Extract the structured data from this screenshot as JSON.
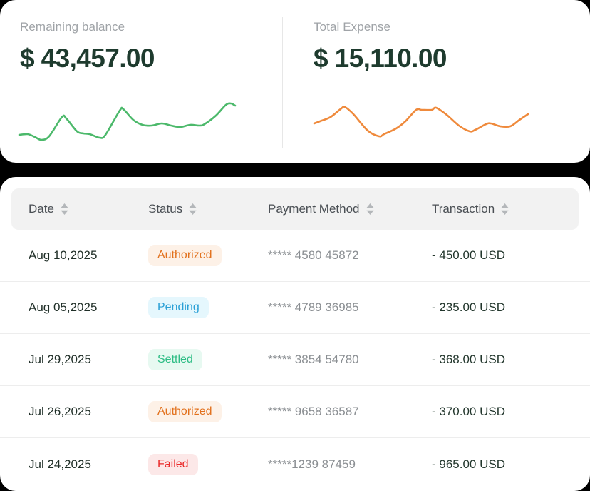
{
  "page": {
    "background_color": "#000000",
    "card_color": "#ffffff"
  },
  "summary": {
    "cards": [
      {
        "label": "Remaining balance",
        "value": "$ 43,457.00",
        "trend_color": "#4cb96b"
      },
      {
        "label": "Total Expense",
        "value": "$ 15,110.00",
        "trend_color": "#ef8a3c"
      }
    ]
  },
  "chart_data": [
    {
      "type": "line",
      "name": "remaining-balance-trend",
      "color": "#4cb96b",
      "legend": "none",
      "axes": "hidden",
      "points": [
        [
          2,
          53
        ],
        [
          14,
          52
        ],
        [
          24,
          56
        ],
        [
          33,
          60
        ],
        [
          44,
          55
        ],
        [
          62,
          28
        ],
        [
          68,
          30
        ],
        [
          83,
          48
        ],
        [
          92,
          51
        ],
        [
          101,
          52
        ],
        [
          115,
          57
        ],
        [
          123,
          53
        ],
        [
          143,
          19
        ],
        [
          148,
          17
        ],
        [
          162,
          32
        ],
        [
          175,
          39
        ],
        [
          188,
          40
        ],
        [
          202,
          37
        ],
        [
          215,
          40
        ],
        [
          228,
          42
        ],
        [
          242,
          39
        ],
        [
          255,
          40
        ],
        [
          262,
          38
        ],
        [
          278,
          26
        ],
        [
          292,
          11
        ],
        [
          299,
          9
        ],
        [
          305,
          12
        ]
      ]
    },
    {
      "type": "line",
      "name": "total-expense-trend",
      "color": "#ef8a3c",
      "legend": "none",
      "axes": "hidden",
      "points": [
        [
          4,
          37
        ],
        [
          12,
          34
        ],
        [
          27,
          28
        ],
        [
          42,
          16
        ],
        [
          47,
          14
        ],
        [
          59,
          24
        ],
        [
          79,
          47
        ],
        [
          95,
          55
        ],
        [
          102,
          52
        ],
        [
          119,
          44
        ],
        [
          132,
          34
        ],
        [
          147,
          18
        ],
        [
          155,
          18
        ],
        [
          169,
          18
        ],
        [
          175,
          15
        ],
        [
          190,
          25
        ],
        [
          207,
          40
        ],
        [
          222,
          48
        ],
        [
          230,
          46
        ],
        [
          245,
          38
        ],
        [
          252,
          37
        ],
        [
          265,
          41
        ],
        [
          279,
          41
        ],
        [
          292,
          32
        ],
        [
          304,
          24
        ]
      ]
    }
  ],
  "table": {
    "columns": [
      "Date",
      "Status",
      "Payment Method",
      "Transaction"
    ],
    "rows": [
      {
        "date": "Aug 10,2025",
        "status": "Authorized",
        "payment_method": "***** 4580 45872",
        "transaction": "- 450.00 USD"
      },
      {
        "date": "Aug 05,2025",
        "status": "Pending",
        "payment_method": "***** 4789 36985",
        "transaction": "- 235.00 USD"
      },
      {
        "date": "Jul 29,2025",
        "status": "Settled",
        "payment_method": "***** 3854 54780",
        "transaction": "- 368.00 USD"
      },
      {
        "date": "Jul 26,2025",
        "status": "Authorized",
        "payment_method": "***** 9658 36587",
        "transaction": "- 370.00 USD"
      },
      {
        "date": "Jul 24,2025",
        "status": "Failed",
        "payment_method": "*****1239 87459",
        "transaction": "- 965.00 USD"
      }
    ],
    "status_colors": {
      "Authorized": {
        "text": "#e2711d",
        "background": "#fdf1e7"
      },
      "Pending": {
        "text": "#2aa0d6",
        "background": "#e5f7fd"
      },
      "Settled": {
        "text": "#2ebd85",
        "background": "#e7f9f1"
      },
      "Failed": {
        "text": "#ea2a2a",
        "background": "#fce8e8"
      }
    }
  }
}
